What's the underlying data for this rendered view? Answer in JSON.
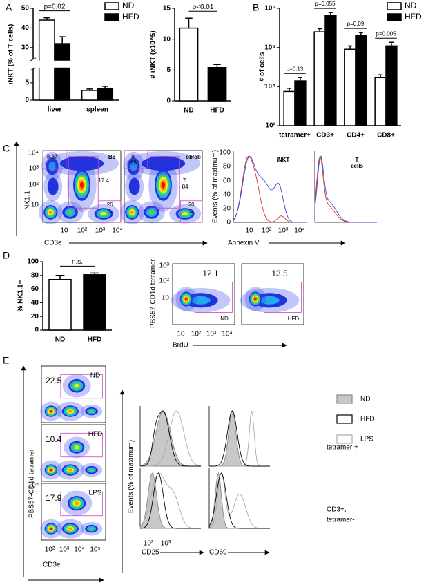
{
  "panel_labels": [
    "A",
    "B",
    "C",
    "D",
    "E"
  ],
  "chart_data": [
    {
      "type": "bar",
      "y_label": "iNKT (% of T cells)",
      "categories": [
        "liver",
        "spleen"
      ],
      "series": [
        {
          "name": "ND",
          "color": "#ffffff",
          "values": [
            44,
            2.8
          ],
          "errors": [
            1.2,
            0.4
          ]
        },
        {
          "name": "HFD",
          "color": "#000000",
          "values": [
            32,
            3.3
          ],
          "errors": [
            3.5,
            0.7
          ]
        }
      ],
      "ylim": [
        0,
        50
      ],
      "ybreak": [
        9,
        24
      ],
      "yticks": [
        0,
        5,
        30,
        40,
        50
      ],
      "annotations": [
        "p=0.02"
      ],
      "legend": "upper right"
    },
    {
      "type": "bar",
      "y_label": "# iNKT (x10^5)",
      "categories": [
        "ND",
        "HFD"
      ],
      "values": [
        11.8,
        5.4
      ],
      "errors": [
        1.6,
        0.5
      ],
      "colors": [
        "#ffffff",
        "#000000"
      ],
      "ylim": [
        0,
        15
      ],
      "yticks": [
        0,
        5,
        10,
        15
      ],
      "annotations": [
        "p<0.01"
      ]
    },
    {
      "type": "bar",
      "y_label": "# of cells",
      "categories": [
        "tetramer+",
        "CD3+",
        "CD4+",
        "CD8+"
      ],
      "series": [
        {
          "name": "ND",
          "color": "#ffffff",
          "values": [
            7500,
            250000,
            90000,
            17000
          ],
          "errors": [
            1500,
            50000,
            20000,
            3000
          ]
        },
        {
          "name": "HFD",
          "color": "#000000",
          "values": [
            14000,
            650000,
            200000,
            110000
          ],
          "errors": [
            3000,
            130000,
            40000,
            25000
          ]
        }
      ],
      "ylim": [
        1000,
        1000000
      ],
      "log_scale": true,
      "yticks": [
        {
          "value": 1000,
          "label": "10³"
        },
        {
          "value": 10000,
          "label": "10⁴"
        },
        {
          "value": 100000,
          "label": "10⁵"
        },
        {
          "value": 1000000,
          "label": "10⁶"
        }
      ],
      "annotations": [
        "p=0.13",
        "p=0.055",
        "p=0.09",
        "p=0.005"
      ],
      "legend": "upper right"
    },
    {
      "type": "bar",
      "y_label": "% NK1.1+",
      "categories": [
        "ND",
        "HFD"
      ],
      "values": [
        74,
        81
      ],
      "errors": [
        6,
        2.5
      ],
      "colors": [
        "#ffffff",
        "#000000"
      ],
      "ylim": [
        0,
        100
      ],
      "yticks": [
        0,
        20,
        40,
        60,
        80,
        100
      ],
      "annotations": [
        "n.s."
      ]
    }
  ],
  "flow": {
    "C": {
      "dot_plots": [
        {
          "sample": "B6",
          "gates": [
            "8.67",
            "17.4",
            [
              "26",
              ".5"
            ]
          ]
        },
        {
          "sample": "ob/ob",
          "gates": [
            [
              "9.",
              "65"
            ],
            [
              "7.",
              "84"
            ],
            [
              "20",
              ".3"
            ]
          ]
        }
      ],
      "y_label": "NK1.1",
      "x_label": "CD3e",
      "yticks": [
        "10⁴",
        "10³",
        "10²",
        "10"
      ],
      "xticks": [
        "10",
        "10²",
        "10³",
        "10⁴"
      ],
      "histograms": [
        {
          "title": "iNKT"
        },
        {
          "title": [
            "T",
            "cells"
          ]
        }
      ],
      "hist_y_label": "Events (% of maximum)",
      "hist_yticks": [
        100,
        80,
        60,
        40,
        20,
        0
      ],
      "hist_x_label": "Annexin V",
      "hist_xticks": [
        "10",
        "10²",
        "10³",
        "10⁴"
      ]
    },
    "D": {
      "dot_plots": [
        {
          "sample": "ND",
          "gate": "12.1"
        },
        {
          "sample": "HFD",
          "gate": "13.5"
        }
      ],
      "y_label": "PBS57-CD1d tetramer",
      "x_label": "BrdU",
      "yticks": [
        "10³",
        "10²",
        "10"
      ],
      "xticks": [
        "10",
        "10²",
        "10³",
        "10⁴"
      ]
    },
    "E": {
      "dot_plots": [
        {
          "sample": "ND",
          "gate": "22.5"
        },
        {
          "sample": "HFD",
          "gate": "10.4"
        },
        {
          "sample": "LPS",
          "gate": "17.9"
        }
      ],
      "y_label": "PBS57-CD1d tetramer",
      "yticks": [
        "10⁵"
      ],
      "x_label": "CD3e",
      "xticks": [
        "10²",
        "10³",
        "10⁴",
        "10⁵"
      ],
      "hist_y_label": "Events (% of maximum)",
      "hist_x_labels": [
        "CD25",
        "CD69"
      ],
      "hist_xticks": [
        "10²",
        "10³"
      ],
      "legend": [
        "ND",
        "HFD",
        "LPS"
      ],
      "row_labels": [
        "tetramer +",
        [
          "CD3+,",
          "tetramer-"
        ]
      ]
    }
  }
}
